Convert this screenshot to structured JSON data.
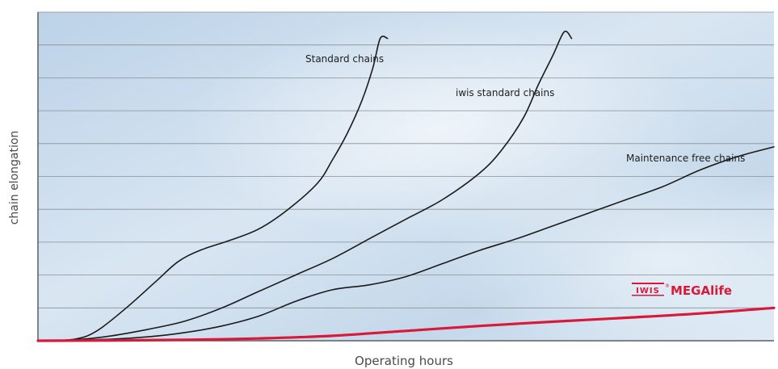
{
  "chart_data": {
    "type": "line",
    "title": "",
    "xlabel": "Operating hours",
    "ylabel": "chain elongation",
    "xlim": [
      0,
      100
    ],
    "ylim": [
      0,
      10
    ],
    "grid": true,
    "tick_labels_shown": false,
    "colors": {
      "plot_background": "#c9dcec",
      "gridline": "#8a8f96",
      "curve": "#1a1a1a",
      "highlight": "#d8193a"
    },
    "series": [
      {
        "name": "Standard chains",
        "color": "#1a1a1a",
        "x": [
          0,
          5,
          8,
          12,
          16,
          19,
          22,
          26,
          30,
          34,
          38,
          40,
          42,
          44,
          45.5,
          46.5,
          47.5
        ],
        "y": [
          0,
          0.05,
          0.3,
          1.0,
          1.8,
          2.4,
          2.75,
          3.05,
          3.4,
          4.0,
          4.8,
          5.5,
          6.3,
          7.3,
          8.3,
          9.2,
          9.2
        ]
      },
      {
        "name": "iwis standard chains",
        "color": "#1a1a1a",
        "x": [
          0,
          5,
          10,
          15,
          20,
          25,
          30,
          35,
          40,
          45,
          50,
          55,
          60,
          63,
          66,
          68,
          70,
          71.5,
          72.5
        ],
        "y": [
          0,
          0.03,
          0.15,
          0.35,
          0.6,
          1.0,
          1.5,
          2.0,
          2.5,
          3.1,
          3.7,
          4.3,
          5.1,
          5.8,
          6.8,
          7.8,
          8.7,
          9.4,
          9.2
        ]
      },
      {
        "name": "Maintenance free chains",
        "color": "#1a1a1a",
        "x": [
          0,
          10,
          15,
          20,
          25,
          30,
          35,
          40,
          45,
          50,
          55,
          60,
          65,
          70,
          75,
          80,
          85,
          90,
          95,
          100
        ],
        "y": [
          0,
          0.05,
          0.12,
          0.25,
          0.45,
          0.75,
          1.2,
          1.55,
          1.7,
          1.95,
          2.35,
          2.75,
          3.1,
          3.5,
          3.9,
          4.3,
          4.7,
          5.2,
          5.6,
          5.9
        ]
      },
      {
        "name": "MEGAlife",
        "color": "#d8193a",
        "emphasis": true,
        "x": [
          0,
          10,
          20,
          30,
          40,
          50,
          60,
          70,
          80,
          90,
          100
        ],
        "y": [
          0,
          0.01,
          0.03,
          0.07,
          0.15,
          0.3,
          0.45,
          0.58,
          0.7,
          0.83,
          1.0
        ]
      }
    ],
    "legend_brand": {
      "logo_text": "IWIS",
      "logo_mark": "®",
      "label": "MEGAlife",
      "color": "#d8193a"
    }
  }
}
